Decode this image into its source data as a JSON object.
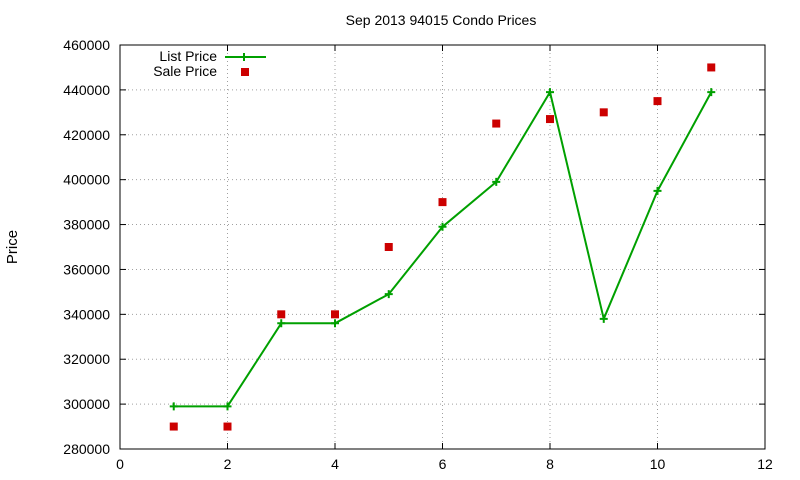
{
  "chart_data": {
    "type": "line",
    "title": "Sep 2013 94015 Condo Prices",
    "xlabel": "",
    "ylabel": "Price",
    "xlim": [
      0,
      12
    ],
    "ylim": [
      280000,
      460000
    ],
    "xticks": [
      0,
      2,
      4,
      6,
      8,
      10,
      12
    ],
    "yticks": [
      280000,
      300000,
      320000,
      340000,
      360000,
      380000,
      400000,
      420000,
      440000,
      460000
    ],
    "grid": true,
    "legend_position": "top-left",
    "series": [
      {
        "name": "List Price",
        "style": "line-with-plus-markers",
        "color": "#00a000",
        "x": [
          1,
          2,
          3,
          4,
          5,
          6,
          7,
          8,
          9,
          10,
          11
        ],
        "y": [
          299000,
          299000,
          336000,
          336000,
          349000,
          379000,
          399000,
          439000,
          338000,
          395000,
          439000
        ]
      },
      {
        "name": "Sale Price",
        "style": "square-markers",
        "color": "#cc0000",
        "x": [
          1,
          2,
          3,
          4,
          5,
          6,
          7,
          8,
          9,
          10,
          11
        ],
        "y": [
          290000,
          290000,
          340000,
          340000,
          370000,
          390000,
          425000,
          427000,
          430000,
          435000,
          450000
        ]
      }
    ]
  }
}
